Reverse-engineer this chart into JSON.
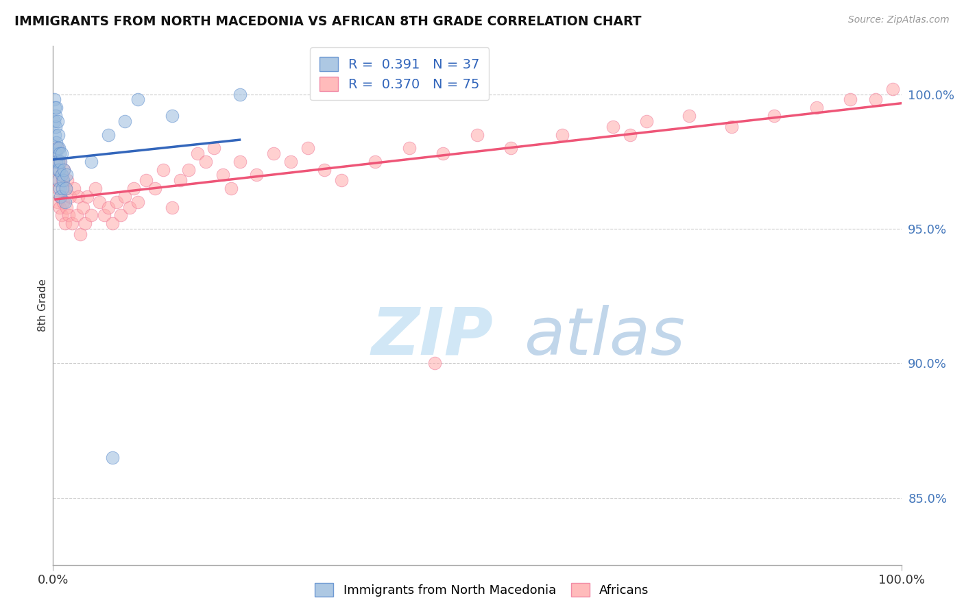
{
  "title": "IMMIGRANTS FROM NORTH MACEDONIA VS AFRICAN 8TH GRADE CORRELATION CHART",
  "source": "Source: ZipAtlas.com",
  "ylabel": "8th Grade",
  "y_ticks": [
    0.85,
    0.9,
    0.95,
    1.0
  ],
  "y_tick_labels": [
    "85.0%",
    "90.0%",
    "95.0%",
    "100.0%"
  ],
  "xlim": [
    0.0,
    1.0
  ],
  "ylim": [
    0.825,
    1.018
  ],
  "blue_R": "0.391",
  "blue_N": "37",
  "pink_R": "0.370",
  "pink_N": "75",
  "legend_label_blue": "Immigrants from North Macedonia",
  "legend_label_pink": "Africans",
  "blue_color": "#99BBDD",
  "pink_color": "#FFAAAA",
  "blue_edge_color": "#5588CC",
  "pink_edge_color": "#EE7799",
  "blue_line_color": "#3366BB",
  "pink_line_color": "#EE5577",
  "watermark_zip": "ZIP",
  "watermark_atlas": "atlas",
  "background_color": "#ffffff",
  "grid_color": "#cccccc",
  "blue_points_x": [
    0.001,
    0.001,
    0.002,
    0.002,
    0.003,
    0.003,
    0.003,
    0.004,
    0.004,
    0.004,
    0.005,
    0.005,
    0.005,
    0.006,
    0.006,
    0.006,
    0.007,
    0.007,
    0.008,
    0.008,
    0.009,
    0.009,
    0.01,
    0.01,
    0.011,
    0.012,
    0.013,
    0.014,
    0.015,
    0.016,
    0.045,
    0.065,
    0.085,
    0.1,
    0.14,
    0.22,
    0.07
  ],
  "blue_points_y": [
    0.99,
    0.998,
    0.985,
    0.995,
    0.988,
    0.992,
    0.978,
    0.982,
    0.995,
    0.975,
    0.98,
    0.99,
    0.972,
    0.975,
    0.985,
    0.968,
    0.98,
    0.972,
    0.978,
    0.965,
    0.975,
    0.962,
    0.97,
    0.978,
    0.965,
    0.968,
    0.972,
    0.96,
    0.965,
    0.97,
    0.975,
    0.985,
    0.99,
    0.998,
    0.992,
    1.0,
    0.865
  ],
  "pink_points_x": [
    0.003,
    0.004,
    0.005,
    0.005,
    0.006,
    0.007,
    0.008,
    0.008,
    0.009,
    0.01,
    0.01,
    0.011,
    0.012,
    0.013,
    0.014,
    0.015,
    0.016,
    0.017,
    0.018,
    0.02,
    0.022,
    0.025,
    0.028,
    0.03,
    0.032,
    0.035,
    0.038,
    0.04,
    0.045,
    0.05,
    0.055,
    0.06,
    0.065,
    0.07,
    0.075,
    0.08,
    0.085,
    0.09,
    0.095,
    0.1,
    0.11,
    0.12,
    0.13,
    0.14,
    0.15,
    0.16,
    0.17,
    0.18,
    0.19,
    0.2,
    0.21,
    0.22,
    0.24,
    0.26,
    0.28,
    0.3,
    0.32,
    0.34,
    0.38,
    0.42,
    0.46,
    0.5,
    0.54,
    0.6,
    0.66,
    0.68,
    0.7,
    0.75,
    0.8,
    0.85,
    0.9,
    0.94,
    0.97,
    0.99,
    0.45
  ],
  "pink_points_y": [
    0.975,
    0.968,
    0.98,
    0.96,
    0.965,
    0.972,
    0.958,
    0.975,
    0.962,
    0.97,
    0.955,
    0.968,
    0.96,
    0.972,
    0.952,
    0.965,
    0.958,
    0.968,
    0.955,
    0.962,
    0.952,
    0.965,
    0.955,
    0.962,
    0.948,
    0.958,
    0.952,
    0.962,
    0.955,
    0.965,
    0.96,
    0.955,
    0.958,
    0.952,
    0.96,
    0.955,
    0.962,
    0.958,
    0.965,
    0.96,
    0.968,
    0.965,
    0.972,
    0.958,
    0.968,
    0.972,
    0.978,
    0.975,
    0.98,
    0.97,
    0.965,
    0.975,
    0.97,
    0.978,
    0.975,
    0.98,
    0.972,
    0.968,
    0.975,
    0.98,
    0.978,
    0.985,
    0.98,
    0.985,
    0.988,
    0.985,
    0.99,
    0.992,
    0.988,
    0.992,
    0.995,
    0.998,
    0.998,
    1.002,
    0.9
  ]
}
